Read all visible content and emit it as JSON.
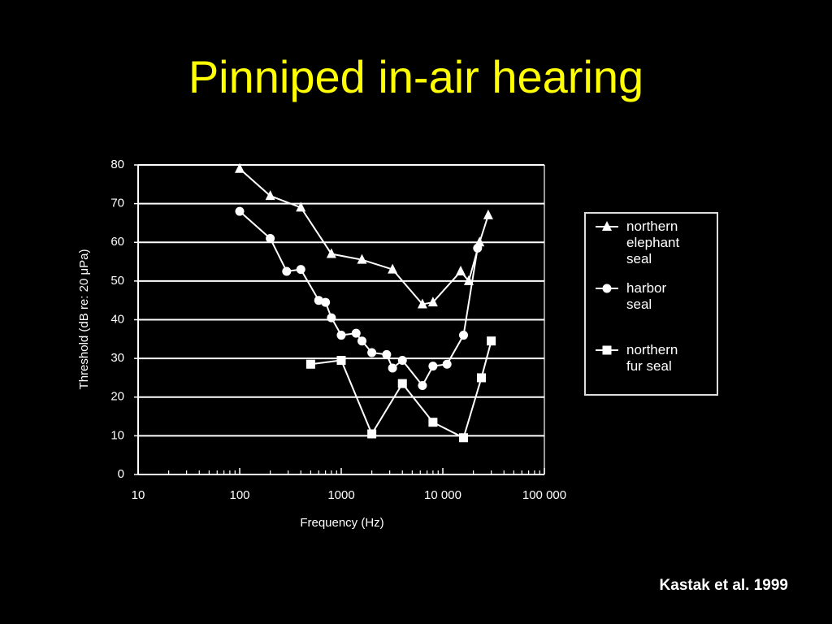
{
  "chart_data": {
    "type": "line",
    "title": "Pinniped in-air hearing",
    "x_label": "Frequency (Hz)",
    "y_label": "Threshold (dB re: 20 μPa)",
    "source": "Kastak et al. 1999",
    "xscale": "log",
    "xlim": [
      10,
      100000
    ],
    "ylim": [
      0,
      80
    ],
    "xticks": [
      10,
      100,
      1000,
      {
        "value": 10000,
        "label": "10 000"
      },
      {
        "value": 100000,
        "label": "100 000"
      }
    ],
    "yticks": [
      0,
      10,
      20,
      30,
      40,
      50,
      60,
      70,
      80
    ],
    "grid": true,
    "minor_ticks": true,
    "legend": "right",
    "series": [
      {
        "name": "northern elephant seal",
        "color": "#ffffff",
        "marker": "triangle",
        "x": [
          100,
          200,
          400,
          800,
          1600,
          3200,
          6300,
          8000,
          15000,
          18000,
          23000,
          28000
        ],
        "values": [
          79,
          72,
          69,
          57,
          55.5,
          53,
          44,
          44.5,
          52.5,
          50,
          60,
          67
        ]
      },
      {
        "name": "harbor seal",
        "color": "#ffffff",
        "marker": "circle",
        "x": [
          100,
          200,
          290,
          400,
          600,
          700,
          800,
          1000,
          1400,
          1600,
          2000,
          2800,
          3200,
          4000,
          6300,
          8000,
          11000,
          16000,
          22000
        ],
        "values": [
          68,
          61,
          52.5,
          53,
          45,
          44.5,
          40.5,
          36,
          36.5,
          34.5,
          31.5,
          31,
          27.5,
          29.5,
          23,
          28,
          28.5,
          36,
          58.5
        ]
      },
      {
        "name": "northern fur seal",
        "color": "#ffffff",
        "marker": "square",
        "x": [
          500,
          1000,
          2000,
          4000,
          8000,
          16000,
          24000,
          30000
        ],
        "values": [
          28.5,
          29.5,
          10.5,
          23.5,
          13.5,
          9.5,
          25,
          34.5
        ]
      }
    ]
  }
}
